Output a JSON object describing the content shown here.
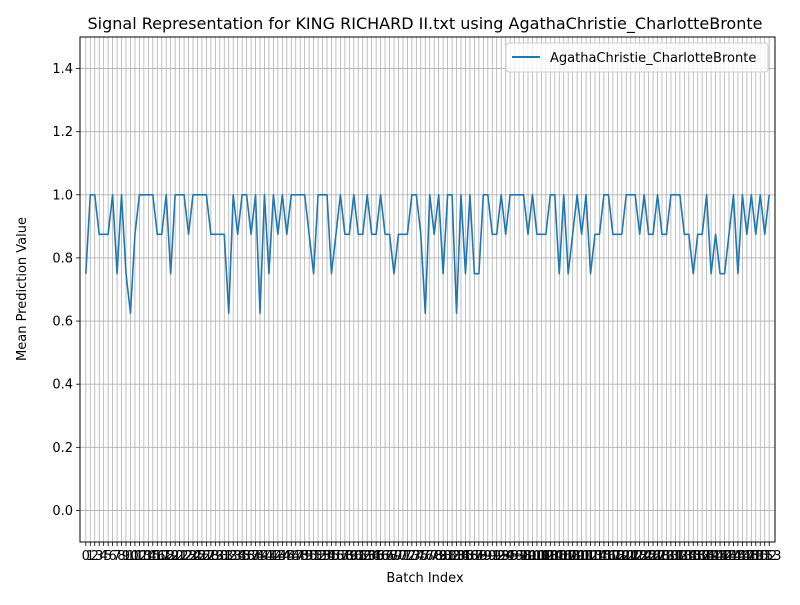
{
  "chart_data": {
    "type": "line",
    "title": "Signal Representation for KING RICHARD II.txt using AgathaChristie_CharlotteBronte",
    "xlabel": "Batch Index",
    "ylabel": "Mean Prediction Value",
    "ylim": [
      -0.1,
      1.5
    ],
    "yticks": [
      "0.0",
      "0.2",
      "0.4",
      "0.6",
      "0.8",
      "1.0",
      "1.2",
      "1.4"
    ],
    "xlim": [
      -1.3,
      154.3
    ],
    "grid": true,
    "legend_position": "top-right",
    "x_tick_labels": [
      "0",
      "1",
      "2",
      "3",
      "4",
      "5",
      "6",
      "7",
      "8",
      "9",
      "10",
      "11",
      "12",
      "13",
      "14",
      "15",
      "16",
      "17",
      "18",
      "19",
      "20",
      "21",
      "22",
      "23",
      "24",
      "25",
      "26",
      "27",
      "28",
      "29",
      "30",
      "31",
      "32",
      "33",
      "34",
      "35",
      "36",
      "37",
      "38",
      "39",
      "40",
      "41",
      "42",
      "43",
      "44",
      "45",
      "46",
      "47",
      "48",
      "49",
      "50",
      "51",
      "52",
      "53",
      "54",
      "55",
      "56",
      "57",
      "58",
      "59",
      "60",
      "61",
      "62",
      "63",
      "64",
      "65",
      "66",
      "67",
      "68",
      "69",
      "70",
      "71",
      "72",
      "73",
      "74",
      "75",
      "76",
      "77",
      "78",
      "79",
      "80",
      "81",
      "82",
      "83",
      "84",
      "85",
      "86",
      "87",
      "88",
      "89",
      "90",
      "91",
      "92",
      "93",
      "94",
      "95",
      "96",
      "97",
      "98",
      "99",
      "100",
      "101",
      "102",
      "103",
      "104",
      "105",
      "106",
      "107",
      "108",
      "109",
      "110",
      "111",
      "112",
      "113",
      "114",
      "115",
      "116",
      "117",
      "118",
      "119",
      "120",
      "121",
      "122",
      "123",
      "124",
      "125",
      "126",
      "127",
      "128",
      "129",
      "130",
      "131",
      "132",
      "133",
      "134",
      "135",
      "136",
      "137",
      "138",
      "139",
      "140",
      "141",
      "142",
      "143",
      "144",
      "145",
      "146",
      "147",
      "148",
      "149",
      "150",
      "151",
      "152",
      "153"
    ],
    "series": [
      {
        "name": "AgathaChristie_CharlotteBronte",
        "color": "#1f77b4",
        "values": [
          0.75,
          1.0,
          1.0,
          0.875,
          0.875,
          0.875,
          1.0,
          0.75,
          1.0,
          0.75,
          0.625,
          0.875,
          1.0,
          1.0,
          1.0,
          1.0,
          0.875,
          0.875,
          1.0,
          0.75,
          1.0,
          1.0,
          1.0,
          0.875,
          1.0,
          1.0,
          1.0,
          1.0,
          0.875,
          0.875,
          0.875,
          0.875,
          0.625,
          1.0,
          0.875,
          1.0,
          1.0,
          0.875,
          1.0,
          0.625,
          1.0,
          0.75,
          1.0,
          0.875,
          1.0,
          0.875,
          1.0,
          1.0,
          1.0,
          1.0,
          0.875,
          0.75,
          1.0,
          1.0,
          1.0,
          0.75,
          0.875,
          1.0,
          0.875,
          0.875,
          1.0,
          0.875,
          0.875,
          1.0,
          0.875,
          0.875,
          1.0,
          0.875,
          0.875,
          0.75,
          0.875,
          0.875,
          0.875,
          1.0,
          1.0,
          0.875,
          0.625,
          1.0,
          0.875,
          1.0,
          0.75,
          1.0,
          1.0,
          0.625,
          1.0,
          0.75,
          1.0,
          0.75,
          0.75,
          1.0,
          1.0,
          0.875,
          0.875,
          1.0,
          0.875,
          1.0,
          1.0,
          1.0,
          1.0,
          0.875,
          1.0,
          0.875,
          0.875,
          0.875,
          1.0,
          1.0,
          0.75,
          1.0,
          0.75,
          0.875,
          1.0,
          0.875,
          1.0,
          0.75,
          0.875,
          0.875,
          1.0,
          1.0,
          0.875,
          0.875,
          0.875,
          1.0,
          1.0,
          1.0,
          0.875,
          1.0,
          0.875,
          0.875,
          1.0,
          0.875,
          0.875,
          1.0,
          1.0,
          1.0,
          0.875,
          0.875,
          0.75,
          0.875,
          0.875,
          1.0,
          0.75,
          0.875,
          0.75,
          0.75,
          0.875,
          1.0,
          0.75,
          1.0,
          0.875,
          1.0,
          0.875,
          1.0,
          0.875,
          1.0
        ]
      }
    ]
  }
}
